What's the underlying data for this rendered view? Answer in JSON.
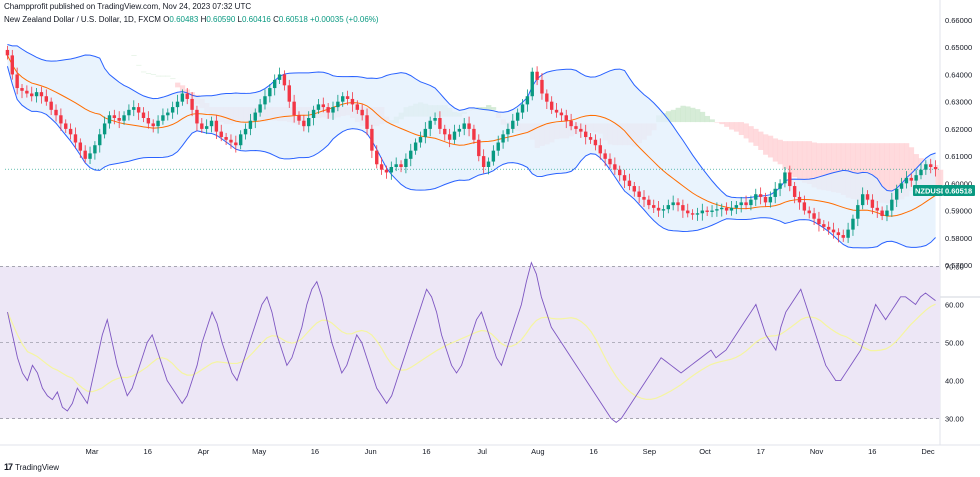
{
  "header": {
    "publisher_line": "Champprofit published on TradingView.com, Nov 24, 2023 07:32 UTC"
  },
  "legend": {
    "instrument": "New Zealand Dollar / U.S. Dollar, 1D, FXCM",
    "o_label": "O",
    "o": "0.60483",
    "h_label": "H",
    "h": "0.60590",
    "l_label": "L",
    "l": "0.60416",
    "c_label": "C",
    "c": "0.60518",
    "change": "+0.00035 (+0.06%)"
  },
  "footer": {
    "brand": "TradingView",
    "logo": "17"
  },
  "price_tag": {
    "symbol": "NZDUSD",
    "price": "0.60518"
  },
  "colors": {
    "up": "#089981",
    "down": "#f23645",
    "band_line": "#2962ff",
    "band_fill": "#e3f0fd",
    "basis": "#ff6d00",
    "rsi_line": "#7e57c2",
    "rsi_ma": "#f5f5a0",
    "rsi_bg": "#ede7f6",
    "cloud_green": "#c8e6c9",
    "cloud_red": "#ffcdd2"
  },
  "chart_data": [
    {
      "type": "candlestick",
      "name": "NZDUSD price",
      "overlays": [
        "Bollinger Bands",
        "Ichimoku cloud"
      ],
      "y_ticks": [
        "0.66000",
        "0.65000",
        "0.64000",
        "0.63000",
        "0.62000",
        "0.61000",
        "0.60000",
        "0.59000",
        "0.58000",
        "0.57000"
      ],
      "ylim": [
        0.57,
        0.66
      ],
      "x_ticks": [
        "Mar",
        "16",
        "Apr",
        "May",
        "16",
        "Jun",
        "16",
        "Jul",
        "Aug",
        "16",
        "Sep",
        "Oct",
        "17",
        "Nov",
        "16",
        "Dec"
      ],
      "last_close": 0.60518,
      "close_series": [
        0.647,
        0.64,
        0.635,
        0.634,
        0.633,
        0.632,
        0.6335,
        0.632,
        0.63,
        0.627,
        0.625,
        0.622,
        0.62,
        0.618,
        0.615,
        0.612,
        0.609,
        0.611,
        0.614,
        0.618,
        0.622,
        0.625,
        0.624,
        0.623,
        0.625,
        0.627,
        0.628,
        0.626,
        0.624,
        0.622,
        0.621,
        0.623,
        0.625,
        0.626,
        0.628,
        0.63,
        0.633,
        0.631,
        0.627,
        0.622,
        0.62,
        0.621,
        0.623,
        0.619,
        0.617,
        0.616,
        0.615,
        0.614,
        0.618,
        0.62,
        0.623,
        0.626,
        0.629,
        0.632,
        0.635,
        0.638,
        0.64,
        0.636,
        0.63,
        0.625,
        0.623,
        0.621,
        0.624,
        0.627,
        0.629,
        0.628,
        0.626,
        0.628,
        0.63,
        0.632,
        0.631,
        0.629,
        0.627,
        0.625,
        0.62,
        0.612,
        0.607,
        0.605,
        0.604,
        0.606,
        0.607,
        0.606,
        0.609,
        0.612,
        0.615,
        0.617,
        0.62,
        0.623,
        0.624,
        0.62,
        0.618,
        0.616,
        0.619,
        0.62,
        0.622,
        0.62,
        0.616,
        0.61,
        0.606,
        0.608,
        0.612,
        0.615,
        0.618,
        0.62,
        0.623,
        0.626,
        0.629,
        0.632,
        0.641,
        0.638,
        0.633,
        0.63,
        0.627,
        0.626,
        0.625,
        0.623,
        0.621,
        0.62,
        0.619,
        0.617,
        0.616,
        0.614,
        0.611,
        0.609,
        0.607,
        0.605,
        0.603,
        0.601,
        0.599,
        0.597,
        0.595,
        0.594,
        0.592,
        0.591,
        0.59,
        0.5905,
        0.592,
        0.593,
        0.592,
        0.59,
        0.589,
        0.5885,
        0.589,
        0.59,
        0.5895,
        0.59,
        0.5905,
        0.591,
        0.59,
        0.591,
        0.592,
        0.593,
        0.592,
        0.594,
        0.596,
        0.595,
        0.593,
        0.595,
        0.598,
        0.6,
        0.604,
        0.599,
        0.595,
        0.593,
        0.59,
        0.589,
        0.587,
        0.585,
        0.584,
        0.583,
        0.582,
        0.581,
        0.58,
        0.583,
        0.587,
        0.592,
        0.596,
        0.594,
        0.591,
        0.59,
        0.588,
        0.59,
        0.594,
        0.598,
        0.6,
        0.602,
        0.601,
        0.603,
        0.605,
        0.607,
        0.606,
        0.6052
      ]
    },
    {
      "type": "line",
      "name": "RSI",
      "y_ticks": [
        "70.00",
        "60.00",
        "50.00",
        "40.00",
        "30.00"
      ],
      "ylim": [
        27,
        73
      ],
      "levels": [
        70,
        50,
        30
      ],
      "last_value": 61,
      "series": [
        58,
        52,
        46,
        42,
        40,
        44,
        42,
        38,
        36,
        35,
        37,
        33,
        32,
        34,
        38,
        36,
        34,
        40,
        46,
        52,
        56,
        50,
        44,
        40,
        36,
        38,
        42,
        46,
        50,
        52,
        48,
        44,
        40,
        38,
        36,
        34,
        36,
        40,
        44,
        50,
        54,
        58,
        55,
        50,
        46,
        42,
        40,
        44,
        48,
        52,
        56,
        60,
        62,
        58,
        52,
        48,
        44,
        46,
        50,
        54,
        60,
        64,
        66,
        62,
        56,
        50,
        46,
        42,
        44,
        48,
        52,
        50,
        46,
        42,
        38,
        36,
        34,
        36,
        40,
        44,
        48,
        52,
        56,
        60,
        64,
        62,
        58,
        52,
        48,
        44,
        42,
        44,
        48,
        52,
        56,
        58,
        54,
        50,
        46,
        44,
        48,
        52,
        56,
        60,
        66,
        71,
        68,
        62,
        58,
        54,
        52,
        50,
        48,
        46,
        44,
        42,
        40,
        38,
        36,
        34,
        32,
        30,
        29,
        30,
        32,
        34,
        36,
        38,
        40,
        42,
        44,
        46,
        45,
        44,
        43,
        42,
        43,
        44,
        45,
        46,
        47,
        48,
        46,
        47,
        48,
        50,
        52,
        54,
        56,
        58,
        60,
        56,
        52,
        50,
        48,
        54,
        58,
        60,
        62,
        64,
        60,
        56,
        52,
        48,
        44,
        42,
        40,
        40,
        42,
        44,
        46,
        48,
        52,
        56,
        60,
        58,
        56,
        58,
        60,
        62,
        62,
        61,
        60,
        62,
        63,
        62,
        61
      ]
    }
  ]
}
